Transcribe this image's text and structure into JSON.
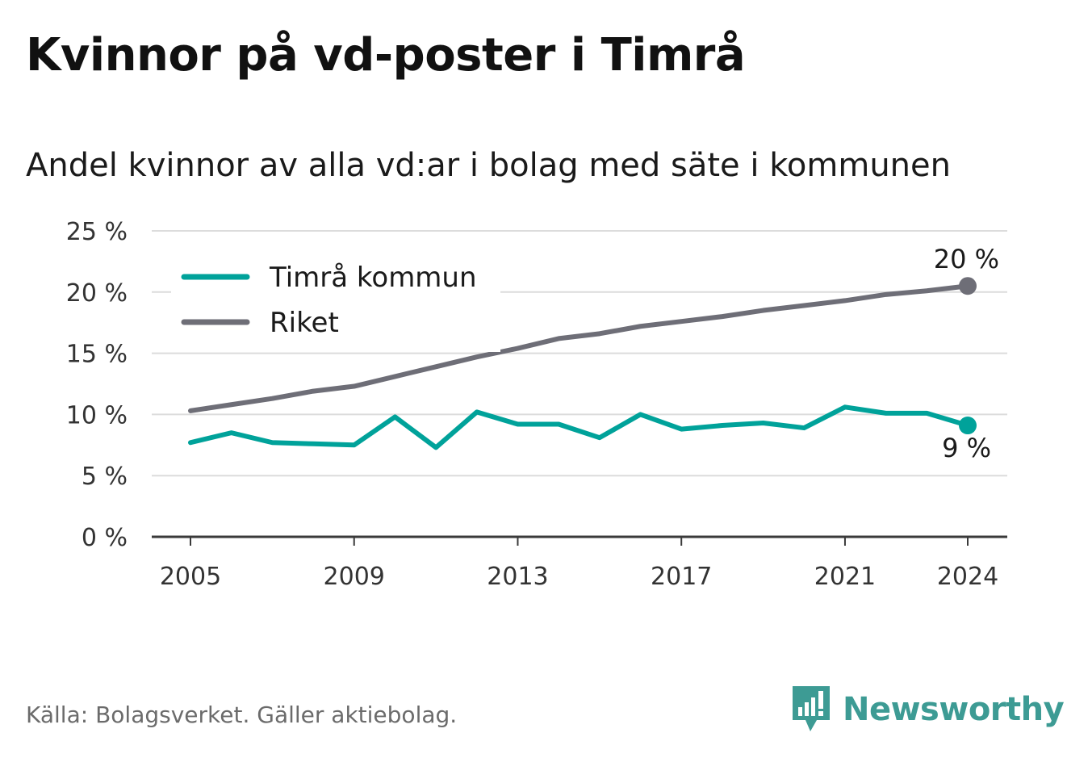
{
  "title": "Kvinnor på vd-poster i Timrå",
  "subtitle": "Andel kvinnor av alla vd:ar i bolag med säte i kommunen",
  "source": "Källa: Bolagsverket. Gäller aktiebolag.",
  "brand": {
    "name": "Newsworthy",
    "logo_icon": "newsworthy-bar-chart-speech-bubble-icon",
    "color": "#3d9b94"
  },
  "chart_data": {
    "type": "line",
    "x": [
      2005,
      2006,
      2007,
      2008,
      2009,
      2010,
      2011,
      2012,
      2013,
      2014,
      2015,
      2016,
      2017,
      2018,
      2019,
      2020,
      2021,
      2022,
      2023,
      2024
    ],
    "x_ticks": [
      "2005",
      "2009",
      "2013",
      "2017",
      "2021",
      "2024"
    ],
    "y_ticks": [
      "0 %",
      "5 %",
      "10 %",
      "15 %",
      "20 %",
      "25 %"
    ],
    "ylim": [
      0,
      25
    ],
    "grid": true,
    "legend_position": "top-left",
    "series": [
      {
        "name": "Timrå kommun",
        "color": "#00a29a",
        "values": [
          7.7,
          8.5,
          7.7,
          7.6,
          7.5,
          9.8,
          7.3,
          10.2,
          9.2,
          9.2,
          8.1,
          10.0,
          8.8,
          9.1,
          9.3,
          8.9,
          10.6,
          10.1,
          10.1,
          9.1
        ],
        "end_label": "9 %"
      },
      {
        "name": "Riket",
        "color": "#6e6e77",
        "values": [
          10.3,
          10.8,
          11.3,
          11.9,
          12.3,
          13.1,
          13.9,
          14.7,
          15.4,
          16.2,
          16.6,
          17.2,
          17.6,
          18.0,
          18.5,
          18.9,
          19.3,
          19.8,
          20.1,
          20.5
        ],
        "end_label": "20 %"
      }
    ]
  }
}
